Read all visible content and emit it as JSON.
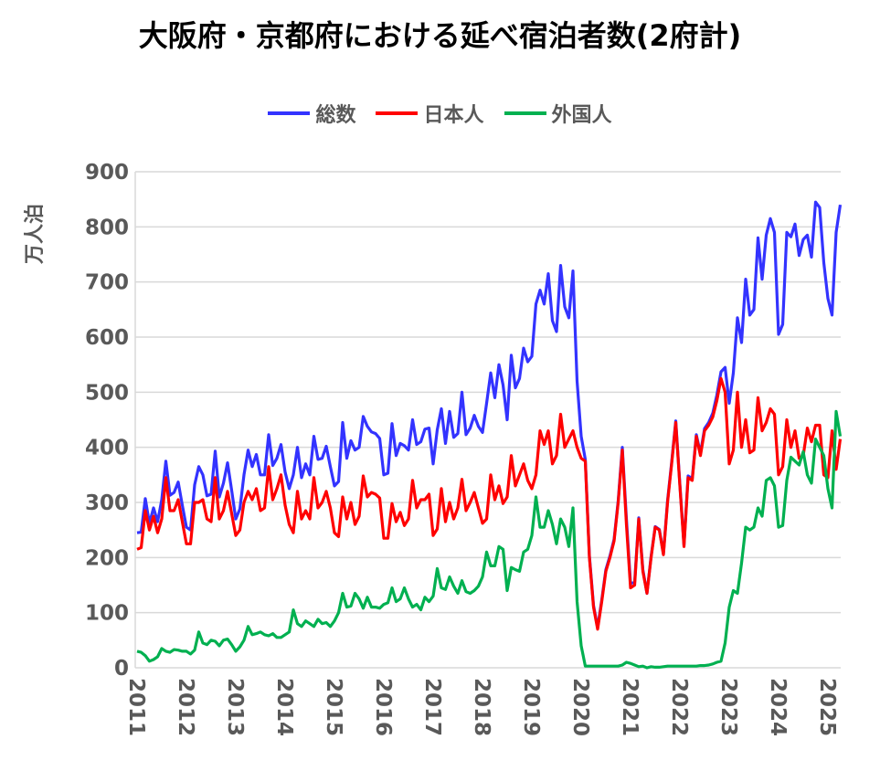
{
  "title": "大阪府・京都府における延べ宿泊者数(2府計)",
  "chart_data": {
    "type": "line",
    "title": "大阪府・京都府における延べ宿泊者数(2府計)",
    "ylabel": "万人泊",
    "xlabel": "",
    "ylim": [
      0,
      900
    ],
    "yticks": [
      "0",
      "100",
      "200",
      "300",
      "400",
      "500",
      "600",
      "700",
      "800",
      "900"
    ],
    "xticks": [
      "2011",
      "2012",
      "2013",
      "2014",
      "2015",
      "2016",
      "2017",
      "2018",
      "2019",
      "2020",
      "2021",
      "2022",
      "2023",
      "2024",
      "2025"
    ],
    "x_start": "2011-01",
    "x_frequency": "monthly",
    "grid": "horizontal",
    "legend_position": "top",
    "series": [
      {
        "name": "総数",
        "color": "#3333FF",
        "values": [
          245,
          246,
          307,
          262,
          290,
          265,
          305,
          375,
          313,
          318,
          337,
          295,
          255,
          250,
          332,
          365,
          350,
          312,
          315,
          393,
          310,
          335,
          372,
          322,
          270,
          288,
          350,
          395,
          365,
          387,
          350,
          350,
          423,
          367,
          380,
          405,
          355,
          325,
          350,
          400,
          345,
          370,
          350,
          420,
          378,
          380,
          402,
          365,
          330,
          338,
          445,
          380,
          412,
          395,
          400,
          456,
          438,
          428,
          425,
          416,
          350,
          353,
          443,
          385,
          407,
          403,
          395,
          450,
          405,
          410,
          433,
          435,
          370,
          432,
          470,
          407,
          465,
          418,
          425,
          500,
          423,
          435,
          458,
          438,
          427,
          480,
          535,
          490,
          550,
          513,
          450,
          567,
          508,
          525,
          580,
          555,
          565,
          660,
          685,
          660,
          715,
          630,
          610,
          730,
          655,
          635,
          720,
          520,
          420,
          378,
          203,
          113,
          73,
          123,
          178,
          203,
          233,
          303,
          400,
          270,
          153,
          155,
          272,
          178,
          135,
          202,
          256,
          251,
          207,
          303,
          373,
          448,
          333,
          223,
          348,
          343,
          423,
          389,
          434,
          445,
          462,
          495,
          537,
          545,
          480,
          535,
          635,
          590,
          705,
          640,
          650,
          780,
          705,
          785,
          815,
          790,
          605,
          623,
          790,
          782,
          805,
          748,
          777,
          785,
          745,
          845,
          835,
          735,
          670,
          640,
          790,
          840
        ]
      },
      {
        "name": "日本人",
        "color": "#FF0000",
        "values": [
          215,
          218,
          285,
          250,
          275,
          245,
          270,
          345,
          285,
          285,
          305,
          265,
          225,
          225,
          300,
          300,
          305,
          270,
          265,
          345,
          270,
          285,
          320,
          280,
          240,
          250,
          300,
          320,
          305,
          325,
          285,
          290,
          365,
          305,
          325,
          350,
          295,
          260,
          245,
          320,
          270,
          285,
          270,
          345,
          290,
          300,
          320,
          290,
          245,
          238,
          310,
          270,
          300,
          260,
          275,
          348,
          310,
          318,
          315,
          308,
          235,
          235,
          298,
          265,
          282,
          258,
          270,
          340,
          290,
          305,
          305,
          315,
          240,
          252,
          325,
          265,
          300,
          270,
          290,
          342,
          285,
          300,
          318,
          290,
          262,
          270,
          350,
          305,
          330,
          298,
          310,
          385,
          330,
          350,
          370,
          340,
          325,
          350,
          430,
          405,
          430,
          370,
          385,
          460,
          400,
          415,
          430,
          400,
          380,
          375,
          200,
          110,
          70,
          120,
          175,
          200,
          230,
          300,
          395,
          260,
          145,
          150,
          270,
          175,
          135,
          200,
          255,
          250,
          205,
          300,
          370,
          445,
          330,
          220,
          345,
          340,
          420,
          385,
          430,
          440,
          455,
          485,
          525,
          500,
          370,
          395,
          500,
          400,
          450,
          390,
          395,
          490,
          430,
          445,
          470,
          460,
          350,
          365,
          450,
          400,
          430,
          380,
          385,
          435,
          410,
          440,
          440,
          350,
          345,
          430,
          360,
          415
        ]
      },
      {
        "name": "外国人",
        "color": "#00B050",
        "values": [
          30,
          28,
          22,
          12,
          15,
          20,
          35,
          30,
          28,
          33,
          32,
          30,
          30,
          25,
          32,
          65,
          45,
          42,
          50,
          48,
          40,
          50,
          52,
          42,
          30,
          38,
          50,
          75,
          60,
          62,
          65,
          60,
          58,
          62,
          55,
          55,
          60,
          65,
          105,
          80,
          75,
          85,
          80,
          75,
          88,
          80,
          82,
          75,
          85,
          100,
          135,
          110,
          112,
          135,
          125,
          108,
          128,
          110,
          110,
          108,
          115,
          118,
          145,
          120,
          125,
          145,
          125,
          110,
          115,
          105,
          128,
          120,
          130,
          180,
          145,
          142,
          165,
          148,
          135,
          158,
          138,
          135,
          140,
          148,
          165,
          210,
          185,
          185,
          220,
          215,
          140,
          182,
          178,
          175,
          210,
          215,
          240,
          310,
          255,
          255,
          285,
          260,
          225,
          270,
          255,
          220,
          290,
          120,
          40,
          3,
          3,
          3,
          3,
          3,
          3,
          3,
          3,
          3,
          5,
          10,
          8,
          5,
          2,
          3,
          0,
          2,
          1,
          1,
          2,
          3,
          3,
          3,
          3,
          3,
          3,
          3,
          3,
          4,
          4,
          5,
          7,
          10,
          12,
          45,
          110,
          140,
          135,
          190,
          255,
          250,
          255,
          290,
          275,
          340,
          345,
          330,
          255,
          258,
          340,
          382,
          375,
          368,
          392,
          350,
          335,
          415,
          400,
          385,
          325,
          290,
          465,
          420
        ]
      }
    ]
  }
}
